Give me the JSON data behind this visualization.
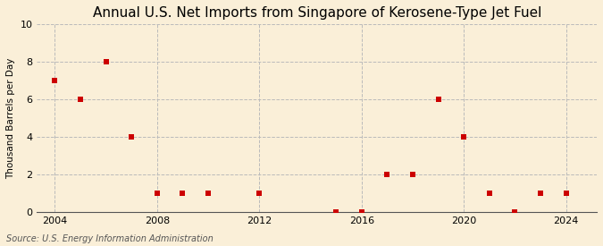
{
  "title": "Annual U.S. Net Imports from Singapore of Kerosene-Type Jet Fuel",
  "ylabel": "Thousand Barrels per Day",
  "source": "Source: U.S. Energy Information Administration",
  "background_color": "#faefd8",
  "years": [
    2004,
    2005,
    2006,
    2007,
    2008,
    2009,
    2010,
    2012,
    2015,
    2016,
    2017,
    2018,
    2019,
    2020,
    2021,
    2022,
    2023,
    2024
  ],
  "values": [
    7,
    6,
    8,
    4,
    1,
    1,
    1,
    1,
    0,
    0,
    2,
    2,
    6,
    4,
    1,
    0,
    1,
    1
  ],
  "ylim": [
    0,
    10
  ],
  "yticks": [
    0,
    2,
    4,
    6,
    8,
    10
  ],
  "xticks": [
    2004,
    2008,
    2012,
    2016,
    2020,
    2024
  ],
  "xlim": [
    2003.3,
    2025.2
  ],
  "marker_color": "#cc0000",
  "marker": "s",
  "marker_size": 16,
  "grid_h_color": "#bbbbbb",
  "grid_v_color": "#bbbbbb",
  "title_fontsize": 11,
  "label_fontsize": 7.5,
  "tick_fontsize": 8,
  "source_fontsize": 7
}
